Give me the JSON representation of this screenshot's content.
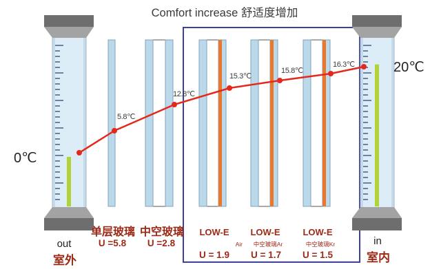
{
  "title": "Comfort increase 舒适度增加",
  "outdoor": {
    "temperature": "0℃",
    "label_en": "out",
    "label_zh": "室外",
    "fill_fraction": 0.3
  },
  "indoor": {
    "temperature": "20℃",
    "label_en": "in",
    "label_zh": "室内",
    "fill_fraction": 0.86
  },
  "glass": [
    {
      "name": "单层玻璃",
      "u_value": "U =5.8",
      "temperature": "5.8℃"
    },
    {
      "name": "中空玻璃",
      "u_value": "U =2.8",
      "temperature": "12.8℃"
    },
    {
      "name": "LOW-E",
      "sub_label": "Air",
      "u_value": "U = 1.9",
      "temperature": "15.3℃"
    },
    {
      "name": "LOW-E",
      "sub_label": "中空玻璃Ar",
      "u_value": "U = 1.7",
      "temperature": "15.8℃"
    },
    {
      "name": "LOW-E",
      "sub_label": "中空玻璃Kr",
      "u_value": "U = 1.5",
      "temperature": "16.3℃"
    }
  ],
  "colors": {
    "curve": "#e5281c",
    "text_red": "#9c2a16",
    "frame": "#3d3f9c",
    "low_e_coating": "#e9782f",
    "glass": "#bcd9ea",
    "thermometer_fill": "#b3d234",
    "thermometer_cap": "#6e6e6e"
  }
}
